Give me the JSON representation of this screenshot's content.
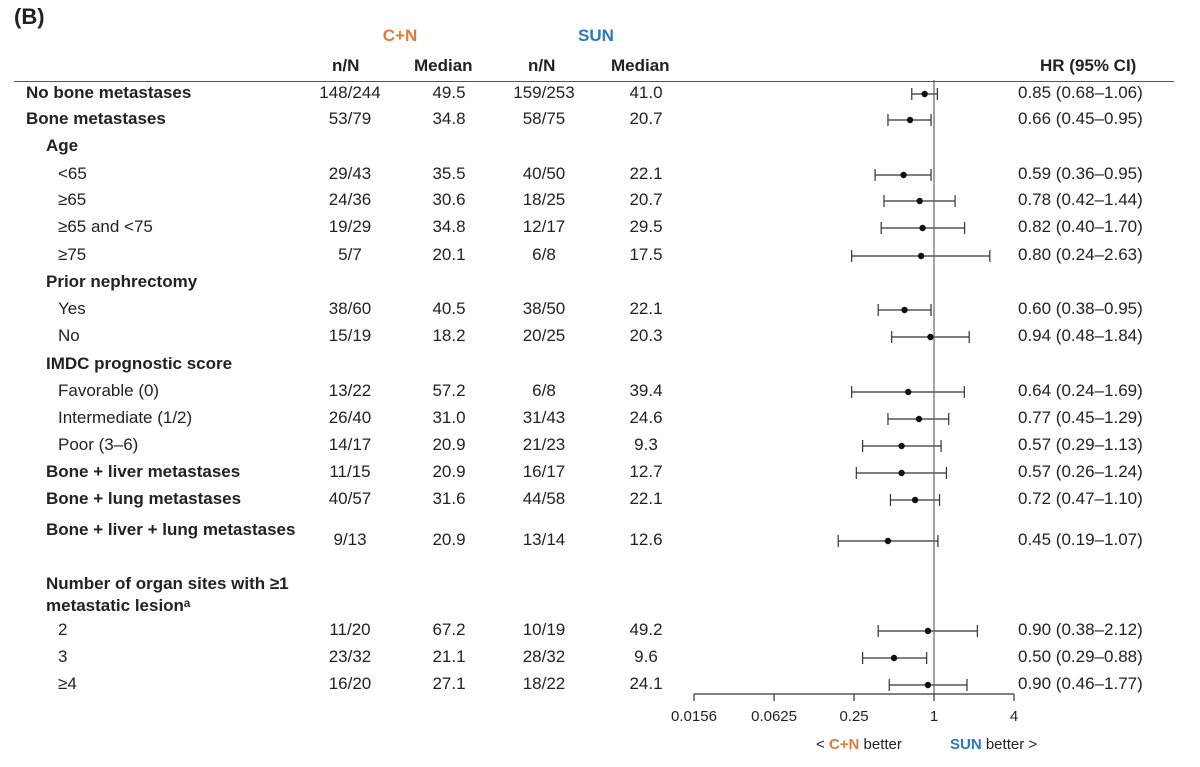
{
  "panel_label": "(B)",
  "groups": {
    "cn": "C+N",
    "sun": "SUN"
  },
  "columns": {
    "nN": "n/N",
    "median": "Median",
    "hr": "HR (95% CI)"
  },
  "colors": {
    "cn": "#e07b3c",
    "sun": "#2a7ab8"
  },
  "footer": {
    "left_prefix": "< ",
    "left_group": "C+N",
    "left_suffix": " better",
    "right_group": "SUN",
    "right_suffix": " better >"
  },
  "chart_data": {
    "type": "forest",
    "x_scale": "log2",
    "xlim": [
      0.0156,
      4
    ],
    "reference_line": 1,
    "xticks": [
      "0.0156",
      "0.0625",
      "0.25",
      "1",
      "4"
    ],
    "rows": [
      {
        "label": "No bone metastases",
        "style": "bold",
        "indent": 0,
        "cn_nN": "148/244",
        "cn_median": "49.5",
        "sun_nN": "159/253",
        "sun_median": "41.0",
        "hr": 0.85,
        "lo": 0.68,
        "hi": 1.06,
        "hr_text": "0.85 (0.68–1.06)"
      },
      {
        "label": "Bone metastases",
        "style": "bold",
        "indent": 0,
        "cn_nN": "53/79",
        "cn_median": "34.8",
        "sun_nN": "58/75",
        "sun_median": "20.7",
        "hr": 0.66,
        "lo": 0.45,
        "hi": 0.95,
        "hr_text": "0.66 (0.45–0.95)"
      },
      {
        "label": "Age",
        "style": "bold",
        "indent": 1,
        "header": true
      },
      {
        "label": "<65",
        "style": "normal",
        "indent": 2,
        "cn_nN": "29/43",
        "cn_median": "35.5",
        "sun_nN": "40/50",
        "sun_median": "22.1",
        "hr": 0.59,
        "lo": 0.36,
        "hi": 0.95,
        "hr_text": "0.59 (0.36–0.95)"
      },
      {
        "label": "≥65",
        "style": "normal",
        "indent": 2,
        "cn_nN": "24/36",
        "cn_median": "30.6",
        "sun_nN": "18/25",
        "sun_median": "20.7",
        "hr": 0.78,
        "lo": 0.42,
        "hi": 1.44,
        "hr_text": "0.78 (0.42–1.44)"
      },
      {
        "label": "≥65 and <75",
        "style": "normal",
        "indent": 2,
        "cn_nN": "19/29",
        "cn_median": "34.8",
        "sun_nN": "12/17",
        "sun_median": "29.5",
        "hr": 0.82,
        "lo": 0.4,
        "hi": 1.7,
        "hr_text": "0.82 (0.40–1.70)"
      },
      {
        "label": "≥75",
        "style": "normal",
        "indent": 2,
        "cn_nN": "5/7",
        "cn_median": "20.1",
        "sun_nN": "6/8",
        "sun_median": "17.5",
        "hr": 0.8,
        "lo": 0.24,
        "hi": 2.63,
        "hr_text": "0.80 (0.24–2.63)"
      },
      {
        "label": "Prior nephrectomy",
        "style": "bold",
        "indent": 1,
        "header": true
      },
      {
        "label": "Yes",
        "style": "normal",
        "indent": 2,
        "cn_nN": "38/60",
        "cn_median": "40.5",
        "sun_nN": "38/50",
        "sun_median": "22.1",
        "hr": 0.6,
        "lo": 0.38,
        "hi": 0.95,
        "hr_text": "0.60 (0.38–0.95)"
      },
      {
        "label": "No",
        "style": "normal",
        "indent": 2,
        "cn_nN": "15/19",
        "cn_median": "18.2",
        "sun_nN": "20/25",
        "sun_median": "20.3",
        "hr": 0.94,
        "lo": 0.48,
        "hi": 1.84,
        "hr_text": "0.94 (0.48–1.84)"
      },
      {
        "label": "IMDC prognostic score",
        "style": "bold",
        "indent": 1,
        "header": true
      },
      {
        "label": "Favorable (0)",
        "style": "normal",
        "indent": 2,
        "cn_nN": "13/22",
        "cn_median": "57.2",
        "sun_nN": "6/8",
        "sun_median": "39.4",
        "hr": 0.64,
        "lo": 0.24,
        "hi": 1.69,
        "hr_text": "0.64 (0.24–1.69)"
      },
      {
        "label": "Intermediate (1/2)",
        "style": "normal",
        "indent": 2,
        "cn_nN": "26/40",
        "cn_median": "31.0",
        "sun_nN": "31/43",
        "sun_median": "24.6",
        "hr": 0.77,
        "lo": 0.45,
        "hi": 1.29,
        "hr_text": "0.77 (0.45–1.29)"
      },
      {
        "label": "Poor (3–6)",
        "style": "normal",
        "indent": 2,
        "cn_nN": "14/17",
        "cn_median": "20.9",
        "sun_nN": "21/23",
        "sun_median": "9.3",
        "hr": 0.57,
        "lo": 0.29,
        "hi": 1.13,
        "hr_text": "0.57 (0.29–1.13)"
      },
      {
        "label": "Bone + liver metastases",
        "style": "bold",
        "indent": 1,
        "cn_nN": "11/15",
        "cn_median": "20.9",
        "sun_nN": "16/17",
        "sun_median": "12.7",
        "hr": 0.57,
        "lo": 0.26,
        "hi": 1.24,
        "hr_text": "0.57 (0.26–1.24)"
      },
      {
        "label": "Bone + lung metastases",
        "style": "bold",
        "indent": 1,
        "cn_nN": "40/57",
        "cn_median": "31.6",
        "sun_nN": "44/58",
        "sun_median": "22.1",
        "hr": 0.72,
        "lo": 0.47,
        "hi": 1.1,
        "hr_text": "0.72 (0.47–1.10)"
      },
      {
        "label": "Bone + liver + lung metastases",
        "style": "bold",
        "indent": 1,
        "wrap": true,
        "cn_nN": "9/13",
        "cn_median": "20.9",
        "sun_nN": "13/14",
        "sun_median": "12.6",
        "hr": 0.45,
        "lo": 0.19,
        "hi": 1.07,
        "hr_text": "0.45 (0.19–1.07)"
      },
      {
        "label": "Number of organ sites with ≥1 metastatic lesionᵃ",
        "style": "bold",
        "indent": 1,
        "header": true,
        "wrap": true
      },
      {
        "label": "2",
        "style": "normal",
        "indent": 2,
        "cn_nN": "11/20",
        "cn_median": "67.2",
        "sun_nN": "10/19",
        "sun_median": "49.2",
        "hr": 0.9,
        "lo": 0.38,
        "hi": 2.12,
        "hr_text": "0.90 (0.38–2.12)"
      },
      {
        "label": "3",
        "style": "normal",
        "indent": 2,
        "cn_nN": "23/32",
        "cn_median": "21.1",
        "sun_nN": "28/32",
        "sun_median": "9.6",
        "hr": 0.5,
        "lo": 0.29,
        "hi": 0.88,
        "hr_text": "0.50 (0.29–0.88)"
      },
      {
        "label": "≥4",
        "style": "normal",
        "indent": 2,
        "cn_nN": "16/20",
        "cn_median": "27.1",
        "sun_nN": "18/22",
        "sun_median": "24.1",
        "hr": 0.9,
        "lo": 0.46,
        "hi": 1.77,
        "hr_text": "0.90 (0.46–1.77)"
      }
    ]
  }
}
